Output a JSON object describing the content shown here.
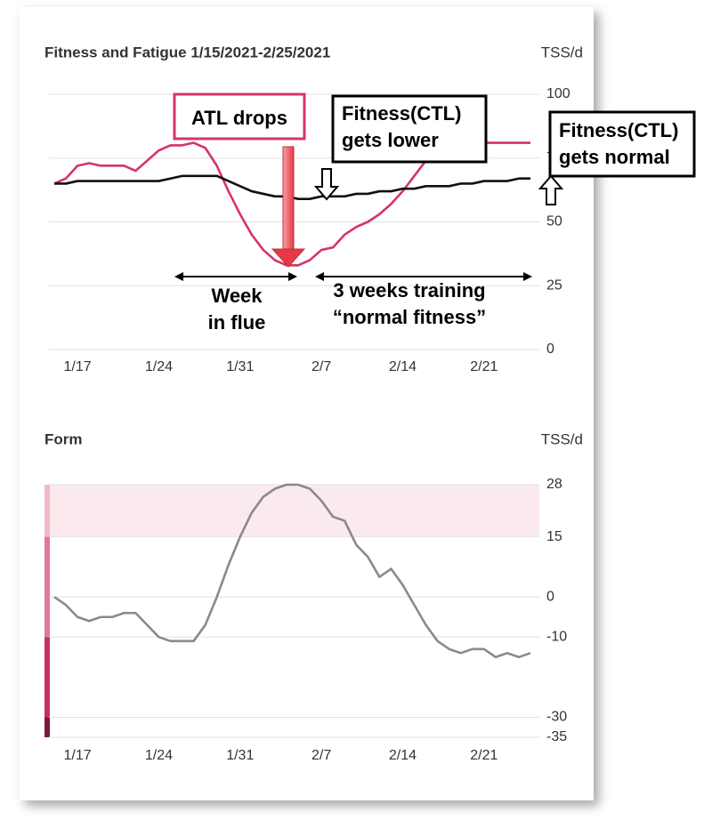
{
  "chart_data": [
    {
      "type": "line",
      "title": "Fitness and Fatigue 1/15/2021-2/25/2021",
      "y_label": "TSS/d",
      "categories": [
        null,
        null,
        "1/17",
        null,
        null,
        null,
        null,
        null,
        null,
        "1/24",
        null,
        null,
        null,
        null,
        null,
        null,
        "1/31",
        null,
        null,
        null,
        null,
        null,
        null,
        "2/7",
        null,
        null,
        null,
        null,
        null,
        null,
        "2/14",
        null,
        null,
        null,
        null,
        null,
        null,
        "2/21",
        null,
        null,
        null,
        null
      ],
      "series": [
        {
          "color": "#d6336c",
          "values": [
            65,
            67,
            72,
            73,
            72,
            72,
            72,
            70,
            74,
            78,
            80,
            80,
            81,
            79,
            72,
            62,
            53,
            45,
            39,
            35,
            33,
            33,
            35,
            39,
            40,
            45,
            48,
            50,
            53,
            57,
            62,
            68,
            74,
            78,
            80,
            81,
            81,
            81,
            81,
            81,
            81,
            81
          ]
        },
        {
          "color": "#111111",
          "values": [
            65,
            65,
            66,
            66,
            66,
            66,
            66,
            66,
            66,
            66,
            67,
            68,
            68,
            68,
            68,
            66,
            64,
            62,
            61,
            60,
            60,
            59,
            59,
            60,
            60,
            60,
            61,
            61,
            62,
            62,
            63,
            63,
            64,
            64,
            64,
            65,
            65,
            66,
            66,
            66,
            67,
            67
          ]
        }
      ],
      "ylim": [
        0,
        100
      ],
      "yticks": [
        0,
        25,
        50,
        75,
        100
      ],
      "grid": true,
      "annotations": [
        {
          "lines": [
            "ATL drops"
          ]
        },
        {
          "lines": [
            "Fitness(CTL)",
            "gets lower"
          ]
        },
        {
          "lines": [
            "Fitness(CTL)",
            "gets normal"
          ]
        },
        {
          "lines": [
            "Week",
            "in flue"
          ]
        },
        {
          "lines": [
            "3 weeks training",
            "“normal fitness”"
          ]
        }
      ]
    },
    {
      "type": "line",
      "title": "Form",
      "y_label": "TSS/d",
      "categories": [
        null,
        null,
        "1/17",
        null,
        null,
        null,
        null,
        null,
        null,
        "1/24",
        null,
        null,
        null,
        null,
        null,
        null,
        "1/31",
        null,
        null,
        null,
        null,
        null,
        null,
        "2/7",
        null,
        null,
        null,
        null,
        null,
        null,
        "2/14",
        null,
        null,
        null,
        null,
        null,
        null,
        "2/21",
        null,
        null,
        null,
        null
      ],
      "series": [
        {
          "color": "#8a8a8a",
          "values": [
            0,
            -2,
            -5,
            -6,
            -5,
            -5,
            -4,
            -4,
            -7,
            -10,
            -11,
            -11,
            -11,
            -7,
            0,
            8,
            15,
            21,
            25,
            27,
            28,
            28,
            27,
            24,
            20,
            19,
            13,
            10,
            5,
            7,
            3,
            -2,
            -7,
            -11,
            -13,
            -14,
            -13,
            -13,
            -15,
            -14,
            -15,
            -14
          ]
        }
      ],
      "ylim": [
        -35,
        28
      ],
      "yticks": [
        28,
        15,
        0,
        -10,
        -30,
        -35
      ],
      "zones": [
        {
          "from": 28,
          "to": 15,
          "color": "#f0b8c8"
        },
        {
          "from": 15,
          "to": -10,
          "color": "#e0789a"
        },
        {
          "from": -10,
          "to": -30,
          "color": "#c9305e"
        },
        {
          "from": -30,
          "to": -35,
          "color": "#7a1c34"
        }
      ]
    }
  ]
}
